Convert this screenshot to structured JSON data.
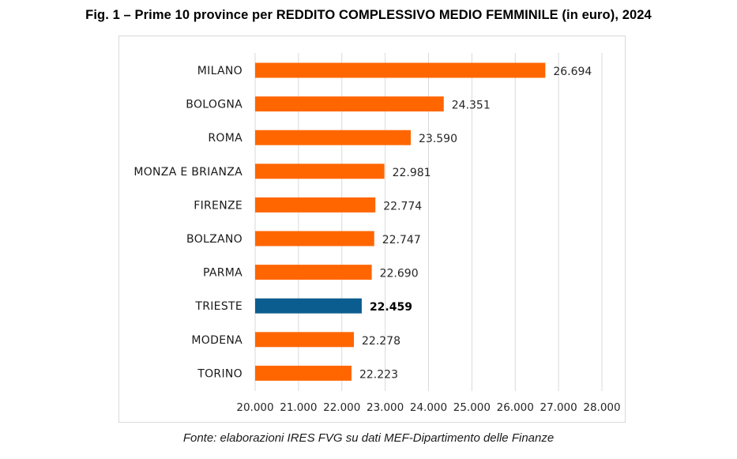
{
  "title": "Fig. 1 – Prime 10 province per REDDITO COMPLESSIVO MEDIO FEMMINILE (in euro), 2024",
  "source": "Fonte: elaborazioni IRES FVG su dati MEF-Dipartimento delle Finanze",
  "colors": {
    "bar": "#ff6600",
    "highlight_bar": "#0b5d8f",
    "gridline": "#d9d9d9",
    "frame": "#d9d9d9"
  },
  "chart_data": {
    "type": "bar",
    "orientation": "horizontal",
    "categories": [
      "MILANO",
      "BOLOGNA",
      "ROMA",
      "MONZA E BRIANZA",
      "FIRENZE",
      "BOLZANO",
      "PARMA",
      "TRIESTE",
      "MODENA",
      "TORINO"
    ],
    "values": [
      26694,
      24351,
      23590,
      22981,
      22774,
      22747,
      22690,
      22459,
      22278,
      22223
    ],
    "value_labels": [
      "26.694",
      "24.351",
      "23.590",
      "22.981",
      "22.774",
      "22.747",
      "22.690",
      "22.459",
      "22.278",
      "22.223"
    ],
    "highlight": "TRIESTE",
    "xlim": [
      20000,
      28000
    ],
    "xticks": [
      20000,
      21000,
      22000,
      23000,
      24000,
      25000,
      26000,
      27000,
      28000
    ],
    "xtick_labels": [
      "20.000",
      "21.000",
      "22.000",
      "23.000",
      "24.000",
      "25.000",
      "26.000",
      "27.000",
      "28.000"
    ],
    "grid": "vertical",
    "legend": "none",
    "xlabel": "",
    "ylabel": ""
  }
}
